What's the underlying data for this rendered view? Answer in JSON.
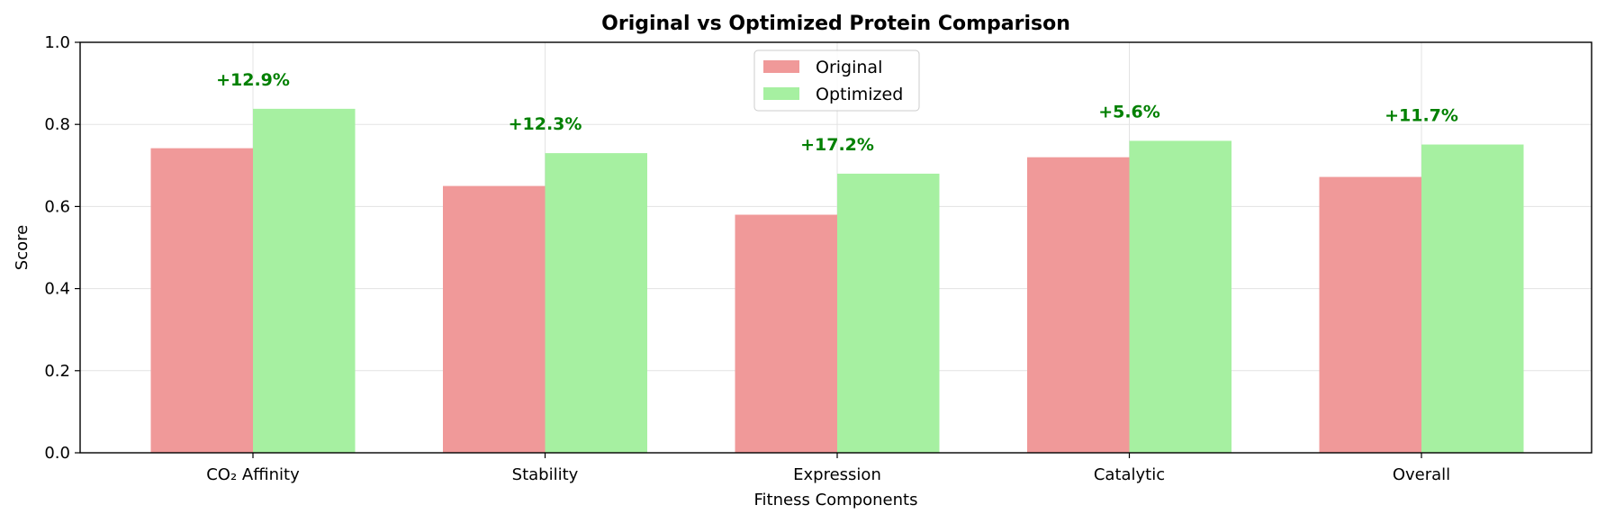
{
  "chart_data": {
    "type": "bar",
    "title": "Original vs Optimized Protein Comparison",
    "xlabel": "Fitness Components",
    "ylabel": "Score",
    "ylim": [
      0,
      1.0
    ],
    "yticks": [
      "0.0",
      "0.2",
      "0.4",
      "0.6",
      "0.8",
      "1.0"
    ],
    "categories": [
      "CO₂ Affinity",
      "Stability",
      "Expression",
      "Catalytic",
      "Overall"
    ],
    "series": [
      {
        "name": "Original",
        "values": [
          0.742,
          0.65,
          0.58,
          0.72,
          0.672
        ],
        "color": "#f09999"
      },
      {
        "name": "Optimized",
        "values": [
          0.838,
          0.73,
          0.68,
          0.76,
          0.751
        ],
        "color": "#a6f0a1"
      }
    ],
    "annotations": [
      "+12.9%",
      "+12.3%",
      "+17.2%",
      "+5.6%",
      "+11.7%"
    ],
    "annotation_color": "#008000",
    "grid": true,
    "legend_position": "top-center"
  }
}
